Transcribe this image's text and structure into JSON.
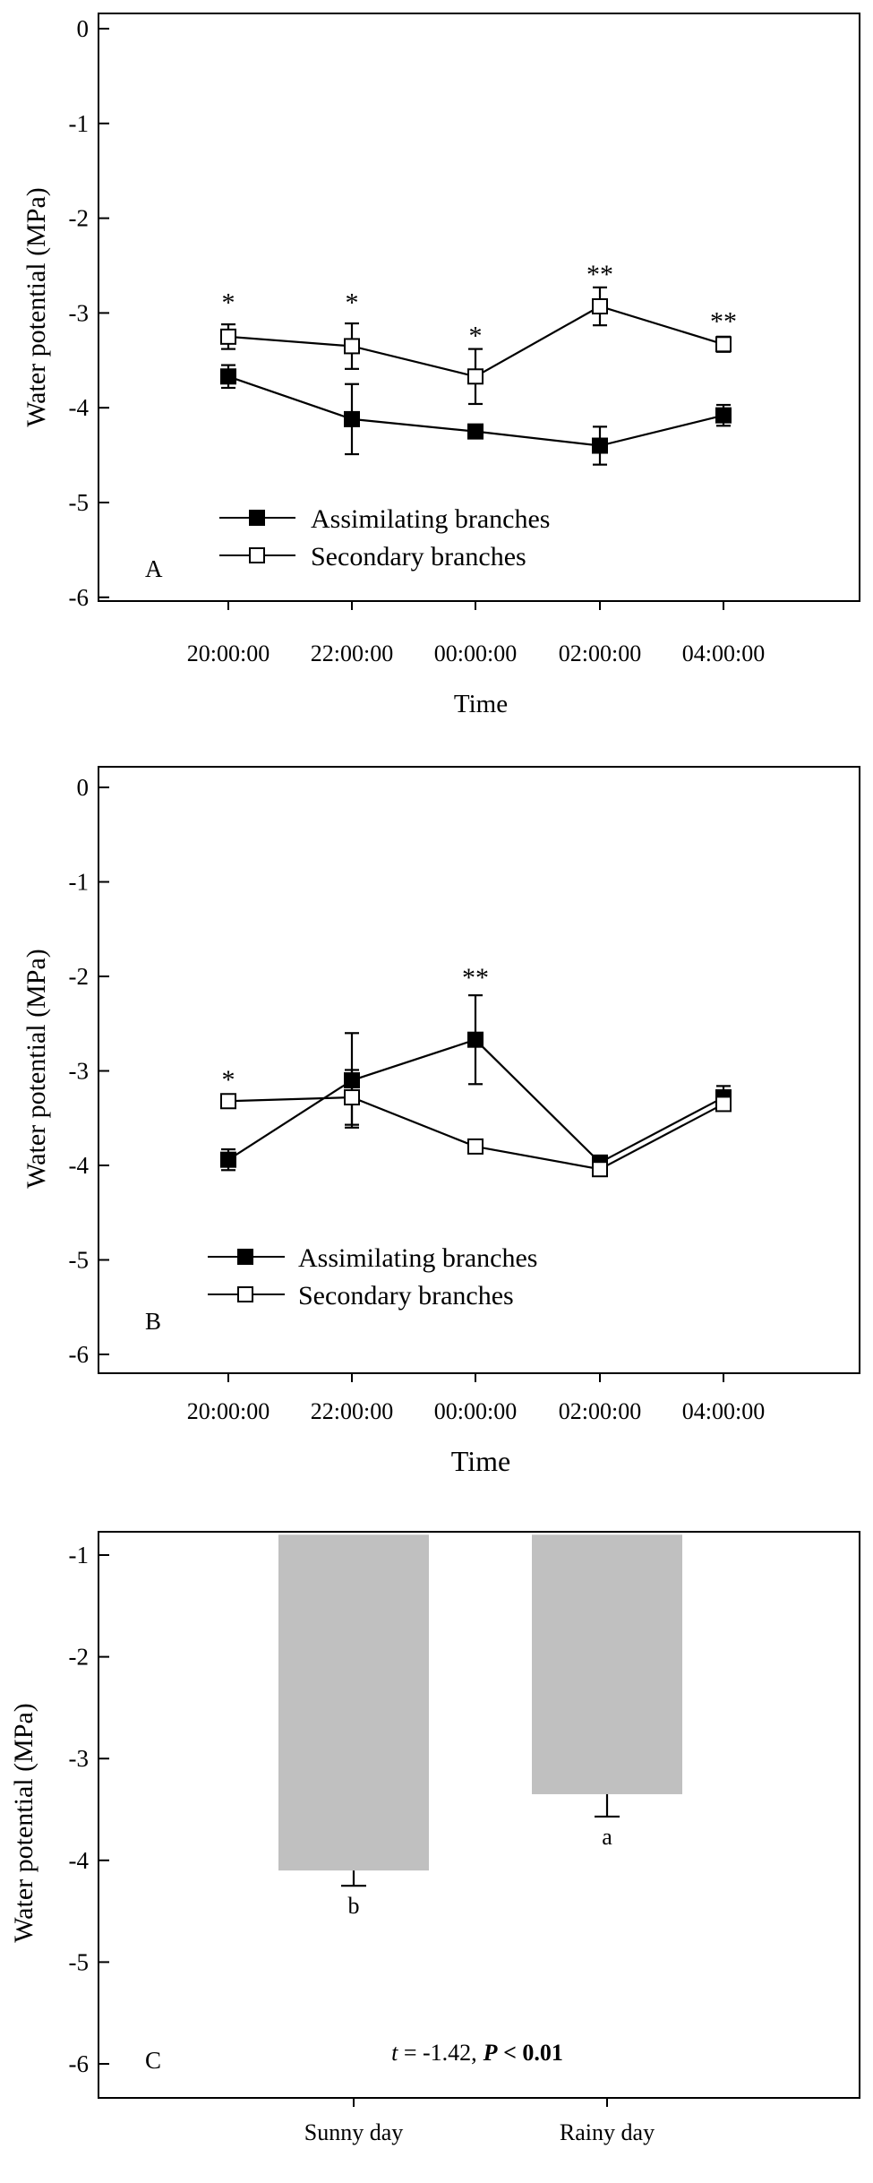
{
  "chart_data": [
    {
      "panel": "A",
      "type": "line",
      "ylabel": "Water potential (MPa)",
      "xlabel": "Time",
      "ylim": [
        -6,
        0
      ],
      "yticks": [
        0,
        -1,
        -2,
        -3,
        -4,
        -5,
        -6
      ],
      "categories": [
        "20:00:00",
        "22:00:00",
        "00:00:00",
        "02:00:00",
        "04:00:00"
      ],
      "series": [
        {
          "name": "Assimilating branches",
          "marker": "filled-square",
          "values": [
            -3.67,
            -4.12,
            -4.25,
            -4.4,
            -4.08
          ],
          "errors": [
            0.12,
            0.37,
            0.06,
            0.2,
            0.11
          ]
        },
        {
          "name": "Secondary branches",
          "marker": "open-square",
          "values": [
            -3.25,
            -3.35,
            -3.67,
            -2.93,
            -3.33
          ],
          "errors": [
            0.13,
            0.24,
            0.29,
            0.2,
            0.08
          ]
        }
      ],
      "significance": [
        {
          "index": 0,
          "label": "*",
          "at": -2.85
        },
        {
          "index": 1,
          "label": "*",
          "at": -2.85
        },
        {
          "index": 2,
          "label": "*",
          "at": -3.2
        },
        {
          "index": 3,
          "label": "**",
          "at": -2.55
        },
        {
          "index": 4,
          "label": "**",
          "at": -3.05
        }
      ]
    },
    {
      "panel": "B",
      "type": "line",
      "ylabel": "Water potential (MPa)",
      "xlabel": "Time",
      "ylim": [
        -6,
        0
      ],
      "yticks": [
        0,
        -1,
        -2,
        -3,
        -4,
        -5,
        -6
      ],
      "categories": [
        "20:00:00",
        "22:00:00",
        "00:00:00",
        "02:00:00",
        "04:00:00"
      ],
      "series": [
        {
          "name": "Assimilating branches",
          "marker": "filled-square",
          "values": [
            -3.94,
            -3.1,
            -2.67,
            -3.97,
            -3.28
          ],
          "errors": [
            0.11,
            0.5,
            0.47,
            0.04,
            0.12
          ]
        },
        {
          "name": "Secondary branches",
          "marker": "open-square",
          "values": [
            -3.32,
            -3.28,
            -3.8,
            -4.04,
            -3.35
          ],
          "errors": [
            0.03,
            0.29,
            0.07,
            0.05,
            0.06
          ]
        }
      ],
      "significance": [
        {
          "index": 0,
          "label": "*",
          "at": -3.05
        },
        {
          "index": 2,
          "label": "**",
          "at": -1.97
        }
      ]
    },
    {
      "panel": "C",
      "type": "bar",
      "ylabel": "Water potential (MPa)",
      "ylim": [
        -6.3,
        -0.8
      ],
      "yticks": [
        -1,
        -2,
        -3,
        -4,
        -5,
        -6
      ],
      "categories": [
        "Sunny day",
        "Rainy day"
      ],
      "values": [
        -4.1,
        -3.35
      ],
      "errors": [
        0.15,
        0.22
      ],
      "letters": [
        "b",
        "a"
      ],
      "bar_color": "#c0c0c0",
      "stat_t": "t",
      "stat_eq": " =  -1.42,",
      "stat_p": "P",
      "stat_lt": " < 0.01"
    }
  ]
}
